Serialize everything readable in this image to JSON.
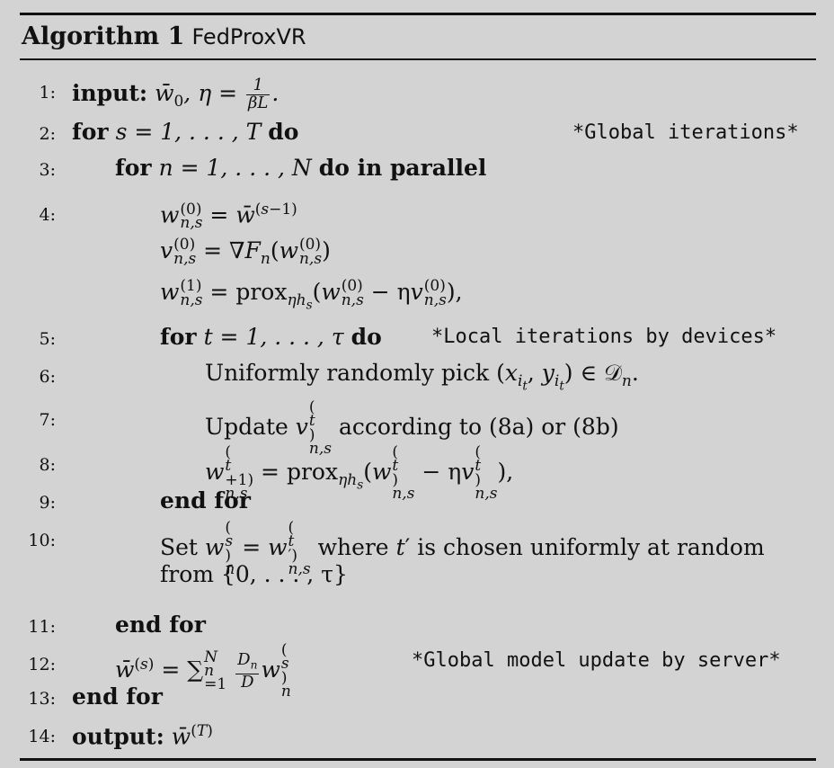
{
  "algorithm": {
    "label": "Algorithm 1",
    "name": "FedProxVR"
  },
  "lines": {
    "l1": {
      "num": "1:",
      "kw": "input:",
      "text": "w̄₀, η = 1/(βL)."
    },
    "l2": {
      "num": "2:",
      "kw": "for",
      "text": "s = 1, . . . , T",
      "kw2": "do",
      "comment": "*Global iterations*"
    },
    "l3": {
      "num": "3:",
      "kw": "for",
      "text": "n = 1, . . . , N",
      "kw2": "do in parallel"
    },
    "l4": {
      "num": "4:"
    },
    "l5": {
      "num": "5:",
      "kw": "for",
      "text": "t = 1, . . . , τ",
      "kw2": "do",
      "comment": "*Local iterations by devices*"
    },
    "l6": {
      "num": "6:",
      "text": "Uniformly randomly pick"
    },
    "l7": {
      "num": "7:",
      "text": "Update",
      "text2": "according to (8a) or (8b)"
    },
    "l8": {
      "num": "8:"
    },
    "l9": {
      "num": "9:",
      "kw": "end for"
    },
    "l10": {
      "num": "10:",
      "text": "Set",
      "text2": "where",
      "text3": "is chosen uniformly at random",
      "cont": "from {0, . . . , τ}"
    },
    "l11": {
      "num": "11:",
      "kw": "end for"
    },
    "l12": {
      "num": "12:",
      "comment": "*Global model update by server*"
    },
    "l13": {
      "num": "13:",
      "kw": "end for"
    },
    "l14": {
      "num": "14:",
      "kw": "output:"
    }
  }
}
